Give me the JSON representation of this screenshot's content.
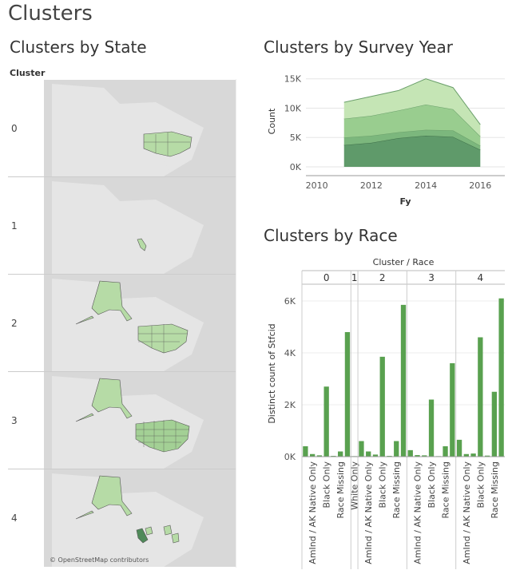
{
  "page": {
    "title": "Clusters"
  },
  "state_section": {
    "title": "Clusters by State",
    "column_header": "Cluster",
    "rows": [
      "0",
      "1",
      "2",
      "3",
      "4"
    ],
    "attribution": "© OpenStreetMap contributors"
  },
  "year_section": {
    "title": "Clusters by Survey Year"
  },
  "race_section": {
    "title": "Clusters by Race"
  },
  "chart_data": [
    {
      "type": "area",
      "title": "Clusters by Survey Year",
      "xlabel": "Fy",
      "ylabel": "Count",
      "x": [
        2011,
        2012,
        2013,
        2014,
        2015,
        2016
      ],
      "x_ticks": [
        "2010",
        "2012",
        "2014",
        "2016"
      ],
      "x_tick_values": [
        2010,
        2012,
        2014,
        2016
      ],
      "y_ticks": [
        "0K",
        "5K",
        "10K",
        "15K"
      ],
      "y_tick_values": [
        0,
        5000,
        10000,
        15000
      ],
      "xlim": [
        2009.6,
        2016.9
      ],
      "ylim": [
        -1500,
        17000
      ],
      "stacked": true,
      "colors": [
        "#5f9a6a",
        "#7cb77d",
        "#99cd8f",
        "#c5e5b5"
      ],
      "series": [
        {
          "values": [
            3700,
            4100,
            4900,
            5300,
            5100,
            2900
          ]
        },
        {
          "values": [
            1300,
            1200,
            1000,
            1000,
            1100,
            700
          ]
        },
        {
          "values": [
            3200,
            3400,
            3700,
            4300,
            3600,
            1600
          ]
        },
        {
          "values": [
            2800,
            3300,
            3400,
            4400,
            3700,
            2000
          ]
        }
      ]
    },
    {
      "type": "bar",
      "title": "Clusters by Race",
      "header": "Cluster / Race",
      "ylabel": "Distinct count of Stfcid",
      "ylim": [
        0,
        6400
      ],
      "y_ticks": [
        "0K",
        "2K",
        "4K",
        "6K"
      ],
      "y_tick_values": [
        0,
        2000,
        4000,
        6000
      ],
      "bar_color": "#59a14f",
      "groups": [
        {
          "cluster": "0",
          "labels": [
            "",
            "AmInd / AK Native Only",
            "",
            "Black Only",
            "",
            "Race Missing",
            ""
          ],
          "values": [
            400,
            100,
            50,
            2700,
            30,
            200,
            4800
          ]
        },
        {
          "cluster": "1",
          "labels": [
            "White Only"
          ],
          "values": [
            20
          ]
        },
        {
          "cluster": "2",
          "labels": [
            "",
            "AmInd / AK Native Only",
            "",
            "Black Only",
            "",
            "Race Missing",
            ""
          ],
          "values": [
            600,
            200,
            80,
            3850,
            30,
            600,
            5850
          ]
        },
        {
          "cluster": "3",
          "labels": [
            "",
            "AmInd / AK Native Only",
            "",
            "Black Only",
            "",
            "Race Missing",
            ""
          ],
          "values": [
            250,
            60,
            50,
            2200,
            20,
            400,
            3600
          ]
        },
        {
          "cluster": "4",
          "labels": [
            "",
            "AmInd / AK Native Only",
            "",
            "Black Only",
            "",
            "Race Missing",
            ""
          ],
          "values": [
            650,
            100,
            120,
            4600,
            40,
            2500,
            6100
          ]
        }
      ]
    }
  ]
}
